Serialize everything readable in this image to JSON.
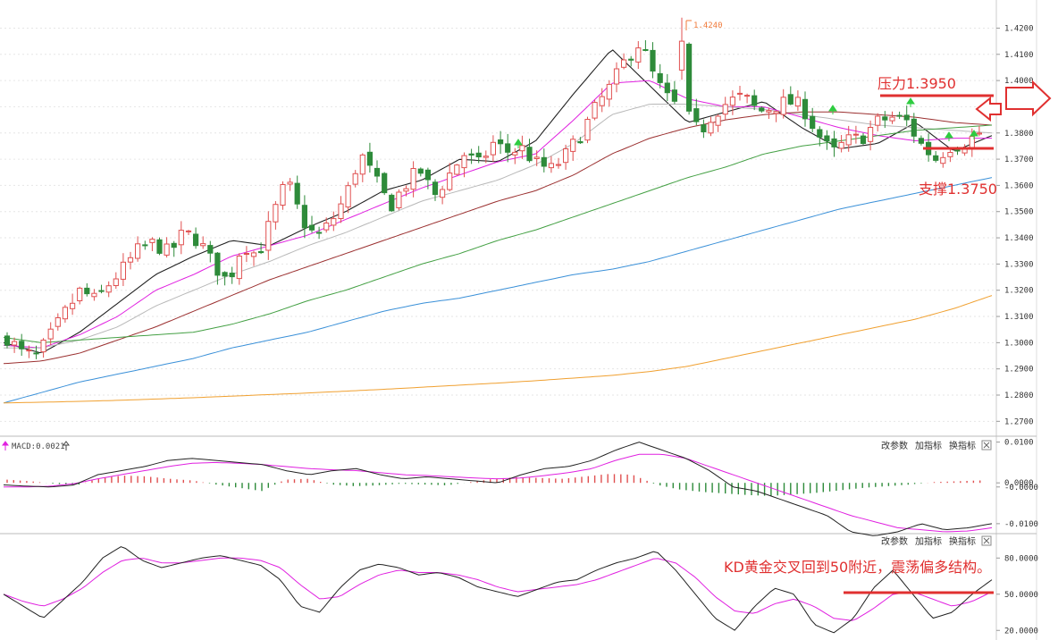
{
  "chart_data": [
    {
      "type": "candlestick",
      "title": "",
      "y_ticks": [
        "1.4200",
        "1.4100",
        "1.4000",
        "1.3900",
        "1.3800",
        "1.3700",
        "1.3600",
        "1.3500",
        "1.3400",
        "1.3300",
        "1.3200",
        "1.3100",
        "1.3000",
        "1.2900",
        "1.2800",
        "1.2700"
      ],
      "ylim": [
        1.265,
        1.428
      ],
      "peak_label": "1.4240",
      "peak_value": 1.424,
      "candle_anchor_closes": [
        1.302,
        1.296,
        1.2945,
        1.303,
        1.312,
        1.32,
        1.316,
        1.323,
        1.329,
        1.336,
        1.338,
        1.334,
        1.342,
        1.339,
        1.33,
        1.323,
        1.338,
        1.333,
        1.348,
        1.362,
        1.347,
        1.34,
        1.346,
        1.356,
        1.372,
        1.362,
        1.352,
        1.36,
        1.366,
        1.356,
        1.364,
        1.372,
        1.368,
        1.376,
        1.373,
        1.374,
        1.368,
        1.366,
        1.372,
        1.38,
        1.39,
        1.398,
        1.408,
        1.415,
        1.4,
        1.392,
        1.388,
        1.38,
        1.388,
        1.392,
        1.394,
        1.388,
        1.39,
        1.392,
        1.39,
        1.38,
        1.372,
        1.377,
        1.378,
        1.384,
        1.386,
        1.385,
        1.376,
        1.37,
        1.375,
        1.376,
        1.38
      ],
      "ma_series": [
        {
          "color": "#222222",
          "anchors": [
            1.3,
            1.296,
            1.304,
            1.315,
            1.326,
            1.333,
            1.339,
            1.337,
            1.344,
            1.35,
            1.358,
            1.362,
            1.37,
            1.369,
            1.377,
            1.395,
            1.412,
            1.398,
            1.384,
            1.388,
            1.392,
            1.382,
            1.374,
            1.376,
            1.384,
            1.373,
            1.379
          ]
        },
        {
          "color": "#e020e0",
          "anchors": [
            1.299,
            1.298,
            1.303,
            1.31,
            1.32,
            1.326,
            1.333,
            1.337,
            1.341,
            1.347,
            1.353,
            1.359,
            1.364,
            1.369,
            1.372,
            1.385,
            1.399,
            1.4,
            1.393,
            1.39,
            1.39,
            1.386,
            1.382,
            1.379,
            1.377,
            1.378,
            1.378
          ]
        },
        {
          "color": "#b8b8b8",
          "anchors": [
            1.298,
            1.298,
            1.301,
            1.306,
            1.314,
            1.32,
            1.326,
            1.331,
            1.337,
            1.342,
            1.348,
            1.354,
            1.358,
            1.362,
            1.368,
            1.376,
            1.387,
            1.391,
            1.391,
            1.39,
            1.389,
            1.387,
            1.385,
            1.383,
            1.382,
            1.381,
            1.38
          ]
        },
        {
          "color": "#9b3030",
          "anchors": [
            1.292,
            1.293,
            1.296,
            1.301,
            1.306,
            1.312,
            1.318,
            1.324,
            1.329,
            1.334,
            1.339,
            1.344,
            1.349,
            1.354,
            1.358,
            1.364,
            1.372,
            1.378,
            1.382,
            1.385,
            1.387,
            1.388,
            1.388,
            1.387,
            1.386,
            1.384,
            1.383
          ]
        },
        {
          "color": "#44a044",
          "anchors": [
            1.302,
            1.3,
            1.301,
            1.302,
            1.303,
            1.304,
            1.307,
            1.311,
            1.316,
            1.32,
            1.325,
            1.33,
            1.334,
            1.339,
            1.343,
            1.348,
            1.353,
            1.358,
            1.363,
            1.367,
            1.372,
            1.375,
            1.377,
            1.379,
            1.381,
            1.382,
            1.383
          ]
        },
        {
          "color": "#3a90d8",
          "anchors": [
            1.277,
            1.281,
            1.285,
            1.288,
            1.291,
            1.294,
            1.298,
            1.301,
            1.304,
            1.308,
            1.312,
            1.315,
            1.317,
            1.32,
            1.323,
            1.326,
            1.328,
            1.331,
            1.335,
            1.339,
            1.343,
            1.347,
            1.351,
            1.354,
            1.357,
            1.36,
            1.363
          ]
        },
        {
          "color": "#f0a030",
          "anchors": [
            1.277,
            1.2773,
            1.2776,
            1.278,
            1.2785,
            1.279,
            1.2796,
            1.2802,
            1.2808,
            1.2815,
            1.2822,
            1.283,
            1.2838,
            1.2846,
            1.2855,
            1.2865,
            1.2875,
            1.289,
            1.291,
            1.294,
            1.297,
            1.3,
            1.303,
            1.306,
            1.309,
            1.313,
            1.318
          ]
        }
      ],
      "resistance_label": "压力1.3950",
      "resistance_value": 1.395,
      "support_label": "支撑1.3750",
      "support_value": 1.375
    },
    {
      "type": "macd",
      "legend": "MACD:0.0021",
      "y_ticks": [
        "0.0100",
        "0.0000",
        "-0.0000",
        "-0.0100"
      ],
      "ylim": [
        -0.012,
        0.011
      ],
      "dif_anchors": [
        -0.0005,
        -0.0008,
        -0.001,
        -0.0005,
        0.002,
        0.003,
        0.004,
        0.0055,
        0.006,
        0.0055,
        0.005,
        0.0045,
        0.003,
        0.002,
        0.003,
        0.0035,
        0.002,
        0.001,
        0.0015,
        0.001,
        0.0005,
        0.0,
        0.002,
        0.0035,
        0.004,
        0.0055,
        0.008,
        0.01,
        0.008,
        0.006,
        0.003,
        -0.001,
        -0.002,
        -0.004,
        -0.006,
        -0.008,
        -0.012,
        -0.013,
        -0.012,
        -0.01,
        -0.0115,
        -0.011,
        -0.01
      ],
      "dea_anchors": [
        -0.001,
        -0.001,
        -0.0008,
        -0.0002,
        0.001,
        0.002,
        0.003,
        0.004,
        0.0048,
        0.005,
        0.0048,
        0.0045,
        0.004,
        0.0035,
        0.0032,
        0.003,
        0.0025,
        0.002,
        0.0018,
        0.0015,
        0.0012,
        0.001,
        0.0012,
        0.0018,
        0.0025,
        0.0035,
        0.0055,
        0.007,
        0.007,
        0.006,
        0.004,
        0.002,
        0.0,
        -0.002,
        -0.004,
        -0.006,
        -0.008,
        -0.0095,
        -0.011,
        -0.0115,
        -0.012,
        -0.0118,
        -0.011
      ],
      "hist_anchors": [
        0.0008,
        0.0004,
        -0.0002,
        -0.0006,
        0.0012,
        0.0018,
        0.0016,
        0.001,
        0.0006,
        -0.0004,
        -0.0012,
        -0.002,
        0.0008,
        0.001,
        -0.0004,
        -0.0008,
        -0.0006,
        -0.0002,
        -0.0004,
        -0.0006,
        0.0002,
        0.001,
        0.0014,
        0.0012,
        0.001,
        0.0016,
        0.0022,
        0.002,
        -0.0004,
        -0.0016,
        -0.0022,
        -0.0026,
        -0.003,
        -0.0032,
        -0.0028,
        -0.0024,
        -0.0018,
        -0.0012,
        -0.0008,
        -0.0004,
        0.0002,
        0.0004,
        0.0006
      ]
    },
    {
      "type": "kd",
      "y_ticks": [
        "80.0000",
        "50.0000",
        "20.0000"
      ],
      "ylim": [
        15,
        98
      ],
      "k_anchors": [
        50,
        40,
        30,
        45,
        60,
        80,
        90,
        78,
        72,
        76,
        80,
        82,
        78,
        74,
        62,
        40,
        35,
        55,
        70,
        75,
        72,
        66,
        68,
        64,
        56,
        52,
        48,
        54,
        60,
        62,
        70,
        76,
        80,
        86,
        70,
        50,
        30,
        20,
        40,
        55,
        50,
        25,
        18,
        30,
        55,
        70,
        50,
        30,
        35,
        50,
        62
      ],
      "d_anchors": [
        50,
        44,
        40,
        46,
        55,
        68,
        78,
        80,
        76,
        76,
        78,
        80,
        80,
        78,
        72,
        58,
        46,
        48,
        58,
        66,
        70,
        68,
        68,
        66,
        62,
        56,
        52,
        54,
        56,
        58,
        62,
        68,
        74,
        80,
        76,
        64,
        48,
        36,
        34,
        42,
        46,
        40,
        30,
        28,
        38,
        50,
        52,
        46,
        40,
        44,
        52
      ],
      "annotation": "KD黄金交叉回到50附近，震荡偏多结构。",
      "reference_value": 50
    }
  ],
  "toolbars": [
    {
      "buttons": [
        "改参数",
        "加指标",
        "换指标"
      ],
      "close_icon": "close-icon"
    },
    {
      "buttons": [
        "改参数",
        "加指标",
        "换指标"
      ],
      "close_icon": "close-icon"
    }
  ],
  "colors": {
    "up": "#e05050",
    "down": "#2e8b3a",
    "annotation": "#e03030",
    "signal_arrow": "#2ecc40"
  }
}
